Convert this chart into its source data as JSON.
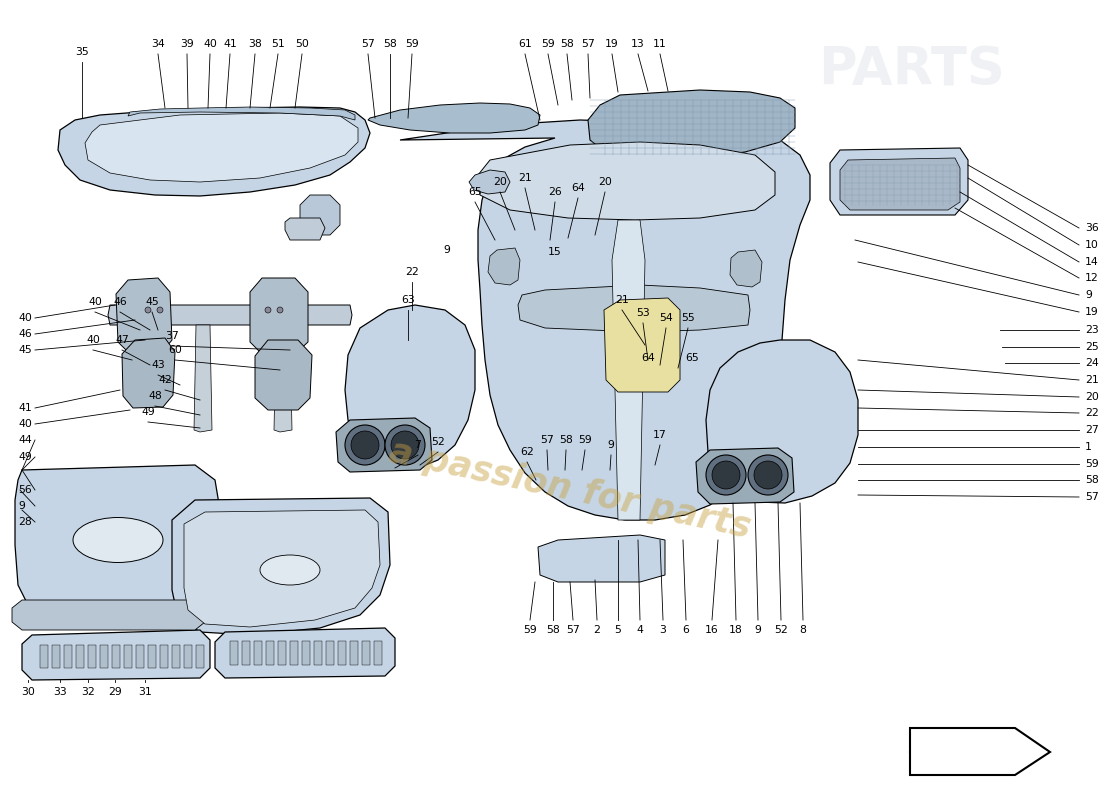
{
  "background_color": "#ffffff",
  "part_color_light": "#c5d5e5",
  "part_color_mid": "#a8bece",
  "part_color_dark": "#8098b0",
  "part_color_darker": "#607080",
  "line_color": "#000000",
  "text_color": "#000000",
  "watermark_text": "a passion for parts",
  "watermark_color": "#c8a040",
  "watermark_alpha": 0.45,
  "label_fontsize": 7.8,
  "arrow_color": "#000000"
}
